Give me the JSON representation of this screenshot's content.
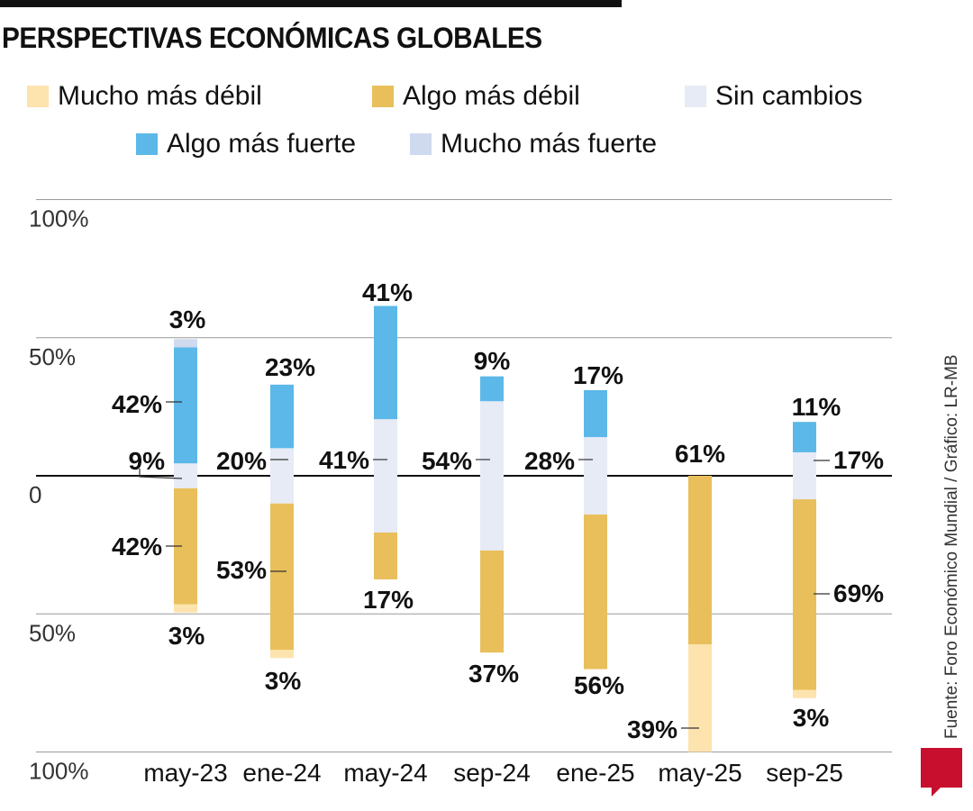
{
  "title": "PERSPECTIVAS ECONÓMICAS GLOBALES",
  "source": "Fuente: Foro Económico Mundial  / Gráfico: LR-MB",
  "logo": "LR",
  "chart_data": {
    "type": "bar",
    "stacked": "diverging",
    "categories": [
      "may-23",
      "ene-24",
      "may-24",
      "sep-24",
      "ene-25",
      "may-25",
      "sep-25"
    ],
    "y_tick_labels": [
      "100%",
      "50%",
      "0",
      "50%",
      "100%"
    ],
    "ylim": [
      -100,
      100
    ],
    "grid": true,
    "legend_position": "top",
    "series": [
      {
        "name": "Mucho más débil",
        "color": "#fde3ae",
        "values": [
          3,
          3,
          0,
          0,
          0,
          39,
          3
        ]
      },
      {
        "name": "Algo más débil",
        "color": "#e8bf5b",
        "values": [
          42,
          53,
          17,
          37,
          56,
          61,
          69
        ]
      },
      {
        "name": "Sin cambios",
        "color": "#e6ebf6",
        "values": [
          9,
          20,
          41,
          54,
          28,
          0,
          17
        ]
      },
      {
        "name": "Algo más fuerte",
        "color": "#5cb8e8",
        "values": [
          42,
          23,
          41,
          9,
          17,
          0,
          11
        ]
      },
      {
        "name": "Mucho más fuerte",
        "color": "#d0daef",
        "values": [
          3,
          0,
          0,
          0,
          0,
          0,
          0
        ]
      }
    ]
  }
}
